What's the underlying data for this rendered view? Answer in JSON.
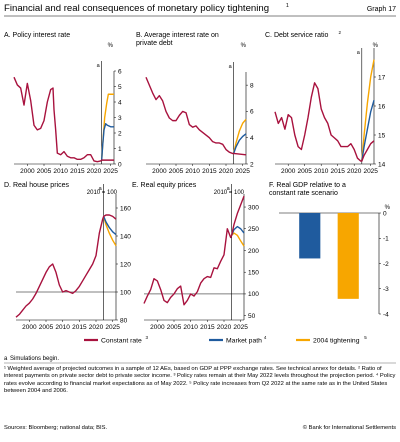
{
  "header": {
    "title": "Financial and real consequences of monetary policy tightening",
    "title_footnote": "1",
    "graph_label": "Graph 17"
  },
  "legend": [
    {
      "label": "Constant rate",
      "footnote": "3",
      "color": "#a8123e"
    },
    {
      "label": "Market path",
      "footnote": "4",
      "color": "#1f5b9e"
    },
    {
      "label": "2004 tightening",
      "footnote": "5",
      "color": "#f7a600"
    }
  ],
  "notes": {
    "annotation": "a",
    "annotation_text": "Simulations begin.",
    "footnotes": "¹ Weighted average of projected outcomes in a sample of 12 AEs, based on GDP at PPP exchange rates. See technical annex for details.  ² Ratio of interest payments on private sector debt to private sector income.  ³ Policy rates remain at their May 2022 levels throughout the projection period.  ⁴ Policy rates evolve according to financial market expectations as of May 2022.  ⁵ Policy rate increases from Q2 2022 at the same rate as in the United States between 2004 and 2006.",
    "sources": "Sources: Bloomberg; national data; BIS.",
    "copyright": "© Bank for International Settlements"
  },
  "chart_data": [
    {
      "id": "A",
      "type": "line",
      "title": "A. Policy interest rate",
      "ylabel": "%",
      "ylim": [
        0,
        6
      ],
      "yticks": [
        0,
        1,
        2,
        3,
        4,
        5,
        6
      ],
      "xlim": [
        1996,
        2026
      ],
      "xticks": [
        2000,
        2005,
        2010,
        2015,
        2020,
        2025
      ],
      "simulation_start": 2022.3,
      "series": [
        {
          "name": "Constant rate",
          "color": "#a8123e",
          "x": [
            1996,
            1997,
            1998,
            1999,
            2000,
            2001,
            2002,
            2003,
            2004,
            2005,
            2006,
            2007,
            2007.7,
            2008,
            2008.5,
            2009,
            2010,
            2011,
            2012,
            2013,
            2014,
            2015,
            2016,
            2017,
            2018,
            2019,
            2020,
            2021,
            2022,
            2022.3,
            2026
          ],
          "y": [
            5.6,
            5.1,
            4.9,
            3.8,
            5.2,
            4.1,
            2.5,
            2.2,
            2.3,
            2.8,
            4.0,
            4.8,
            4.9,
            3.5,
            2.2,
            0.7,
            0.6,
            0.8,
            0.5,
            0.4,
            0.4,
            0.3,
            0.3,
            0.4,
            0.6,
            0.6,
            0.2,
            0.15,
            0.2,
            0.25,
            0.25
          ]
        },
        {
          "name": "Market path",
          "color": "#1f5b9e",
          "x": [
            2022.3,
            2022.6,
            2023,
            2023.5,
            2024,
            2025,
            2026
          ],
          "y": [
            0.25,
            1.2,
            2.2,
            2.6,
            2.5,
            2.4,
            2.4
          ]
        },
        {
          "name": "2004 tightening",
          "color": "#f7a600",
          "x": [
            2022.3,
            2022.7,
            2023.2,
            2023.8,
            2024.3,
            2025,
            2026
          ],
          "y": [
            0.25,
            1.5,
            3.0,
            3.9,
            4.5,
            4.5,
            4.5
          ]
        }
      ]
    },
    {
      "id": "B",
      "type": "line",
      "title": "B. Average interest rate on private debt",
      "ylabel": "%",
      "ylim": [
        2,
        9
      ],
      "yticks": [
        2,
        4,
        6,
        8
      ],
      "xlim": [
        1996,
        2026
      ],
      "xticks": [
        2000,
        2005,
        2010,
        2015,
        2020,
        2025
      ],
      "simulation_start": 2022.3,
      "series": [
        {
          "name": "Constant rate",
          "color": "#a8123e",
          "x": [
            1996,
            1997,
            1998,
            1999,
            2000,
            2001,
            2002,
            2003,
            2004,
            2005,
            2006,
            2007,
            2008,
            2009,
            2010,
            2011,
            2012,
            2013,
            2014,
            2015,
            2016,
            2017,
            2018,
            2019,
            2020,
            2021,
            2022,
            2022.3,
            2026
          ],
          "y": [
            8.6,
            8.0,
            7.4,
            6.9,
            7.2,
            6.8,
            6.0,
            5.5,
            5.3,
            5.3,
            5.7,
            6.0,
            5.9,
            5.0,
            4.8,
            4.9,
            4.6,
            4.4,
            4.2,
            4.0,
            3.7,
            3.6,
            3.6,
            3.5,
            3.1,
            2.9,
            2.8,
            2.8,
            2.7
          ]
        },
        {
          "name": "Market path",
          "color": "#1f5b9e",
          "x": [
            2022.3,
            2023,
            2024,
            2025,
            2026
          ],
          "y": [
            2.8,
            3.3,
            3.8,
            4.1,
            4.3
          ]
        },
        {
          "name": "2004 tightening",
          "color": "#f7a600",
          "x": [
            2022.3,
            2023,
            2024,
            2025,
            2026
          ],
          "y": [
            2.8,
            3.6,
            4.5,
            5.1,
            5.4
          ]
        }
      ]
    },
    {
      "id": "C",
      "type": "line",
      "title": "C. Debt service ratio",
      "title_footnote": "2",
      "ylabel": "%",
      "ylim": [
        14,
        18
      ],
      "yticks": [
        14,
        15,
        16,
        17
      ],
      "xlim": [
        1996,
        2026
      ],
      "xticks": [
        2000,
        2005,
        2010,
        2015,
        2020,
        2025
      ],
      "simulation_start": 2022.3,
      "series": [
        {
          "name": "Constant rate",
          "color": "#a8123e",
          "x": [
            1996,
            1997,
            1998,
            1999,
            2000,
            2001,
            2002,
            2003,
            2004,
            2005,
            2006,
            2007,
            2008,
            2009,
            2010,
            2011,
            2012,
            2013,
            2014,
            2015,
            2016,
            2017,
            2018,
            2019,
            2020,
            2021,
            2022,
            2022.3,
            2023,
            2024,
            2025,
            2026
          ],
          "y": [
            15.8,
            15.4,
            15.6,
            15.2,
            15.7,
            15.6,
            15.0,
            14.6,
            14.5,
            15.0,
            15.6,
            16.3,
            16.8,
            16.6,
            15.9,
            15.6,
            15.4,
            15.0,
            14.9,
            14.8,
            14.6,
            14.6,
            14.6,
            14.7,
            14.5,
            14.2,
            14.1,
            14.1,
            14.3,
            14.5,
            14.7,
            14.8
          ]
        },
        {
          "name": "Market path",
          "color": "#1f5b9e",
          "x": [
            2022.3,
            2023,
            2024,
            2025,
            2026
          ],
          "y": [
            14.1,
            14.6,
            15.2,
            15.8,
            16.2
          ]
        },
        {
          "name": "2004 tightening",
          "color": "#f7a600",
          "x": [
            2022.3,
            2023,
            2024,
            2025,
            2026
          ],
          "y": [
            14.1,
            15.0,
            16.1,
            17.0,
            17.6
          ]
        }
      ]
    },
    {
      "id": "D",
      "type": "line",
      "title": "D. Real house prices",
      "ylabel": "2010 = 100",
      "ylim": [
        80,
        170
      ],
      "yticks": [
        80,
        100,
        120,
        140,
        160
      ],
      "xlim": [
        1996,
        2026
      ],
      "xticks": [
        2000,
        2005,
        2010,
        2015,
        2020,
        2025
      ],
      "simulation_start": 2022.3,
      "series": [
        {
          "name": "Constant rate",
          "color": "#a8123e",
          "x": [
            1996,
            1997,
            1998,
            1999,
            2000,
            2001,
            2002,
            2003,
            2004,
            2005,
            2006,
            2007,
            2008,
            2009,
            2010,
            2011,
            2012,
            2013,
            2014,
            2015,
            2016,
            2017,
            2018,
            2019,
            2020,
            2021,
            2022,
            2022.3,
            2023,
            2024,
            2025,
            2026
          ],
          "y": [
            82,
            84,
            87,
            90,
            92,
            95,
            99,
            104,
            109,
            114,
            118,
            120,
            114,
            105,
            100,
            101,
            100,
            99,
            101,
            104,
            108,
            112,
            116,
            120,
            126,
            142,
            152,
            154,
            155,
            155,
            154,
            152
          ]
        },
        {
          "name": "Market path",
          "color": "#1f5b9e",
          "x": [
            2022.3,
            2023,
            2024,
            2025,
            2026
          ],
          "y": [
            154,
            150,
            146,
            143,
            141
          ]
        },
        {
          "name": "2004 tightening",
          "color": "#f7a600",
          "x": [
            2022.3,
            2023,
            2024,
            2025,
            2026
          ],
          "y": [
            154,
            148,
            142,
            137,
            133
          ]
        }
      ]
    },
    {
      "id": "E",
      "type": "line",
      "title": "E. Real equity prices",
      "ylabel": "2010 = 100",
      "ylim": [
        40,
        330
      ],
      "yticks": [
        50,
        100,
        150,
        200,
        250,
        300
      ],
      "xlim": [
        1996,
        2026
      ],
      "xticks": [
        2000,
        2005,
        2010,
        2015,
        2020,
        2025
      ],
      "simulation_start": 2022.3,
      "series": [
        {
          "name": "Constant rate",
          "color": "#a8123e",
          "x": [
            1996,
            1997,
            1998,
            1999,
            2000,
            2001,
            2002,
            2003,
            2004,
            2005,
            2006,
            2007,
            2008,
            2009,
            2010,
            2011,
            2012,
            2013,
            2014,
            2015,
            2016,
            2017,
            2018,
            2019,
            2020,
            2021,
            2022,
            2022.3,
            2023,
            2024,
            2025,
            2026
          ],
          "y": [
            78,
            95,
            110,
            135,
            130,
            110,
            85,
            80,
            92,
            100,
            112,
            118,
            75,
            85,
            100,
            95,
            105,
            125,
            135,
            140,
            138,
            160,
            158,
            175,
            190,
            250,
            230,
            235,
            260,
            285,
            305,
            325
          ]
        },
        {
          "name": "Market path",
          "color": "#1f5b9e",
          "x": [
            2022.3,
            2023,
            2024,
            2025,
            2026
          ],
          "y": [
            235,
            248,
            255,
            250,
            240
          ]
        },
        {
          "name": "2004 tightening",
          "color": "#f7a600",
          "x": [
            2022.3,
            2023,
            2024,
            2025,
            2026
          ],
          "y": [
            235,
            240,
            235,
            222,
            210
          ]
        }
      ]
    },
    {
      "id": "F",
      "type": "bar",
      "title": "F. Real GDP relative to a constant rate scenario",
      "ylabel": "%",
      "ylim": [
        -4,
        0
      ],
      "yticks": [
        -4,
        -3,
        -2,
        -1,
        0
      ],
      "categories": [
        "Market path",
        "2004 tightening"
      ],
      "series": [
        {
          "name": "Market path",
          "color": "#1f5b9e",
          "values": [
            -1.8,
            null
          ]
        },
        {
          "name": "2004 tightening",
          "color": "#f7a600",
          "values": [
            null,
            -3.4
          ]
        }
      ]
    }
  ]
}
